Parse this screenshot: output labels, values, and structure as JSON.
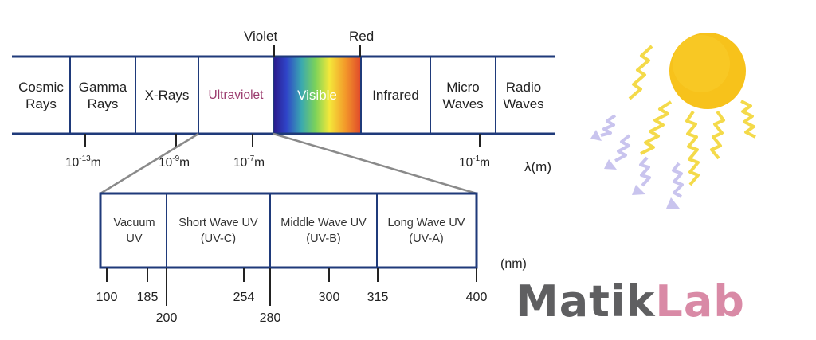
{
  "spectrum": {
    "top_labels": {
      "violet": "Violet",
      "red": "Red"
    },
    "bands": [
      {
        "label": "Cosmic\nRays",
        "color": "#222222"
      },
      {
        "label": "Gamma\nRays",
        "color": "#222222"
      },
      {
        "label": "X-Rays",
        "color": "#222222"
      },
      {
        "label": "Ultraviolet",
        "color": "#9b3b6e"
      },
      {
        "label": "Visible",
        "color": "#ffffff"
      },
      {
        "label": "Infrared",
        "color": "#222222"
      },
      {
        "label": "Micro\nWaves",
        "color": "#222222"
      },
      {
        "label": "Radio\nWaves",
        "color": "#222222"
      }
    ],
    "scale": [
      {
        "base": "10",
        "exp": "-13",
        "unit": "m"
      },
      {
        "base": "10",
        "exp": "-9",
        "unit": "m"
      },
      {
        "base": "10",
        "exp": "-7",
        "unit": "m"
      },
      {
        "base": "10",
        "exp": "-1",
        "unit": "m"
      }
    ],
    "unit_label": "λ(m)"
  },
  "uv_detail": {
    "bands": [
      {
        "label": "Vacuum\nUV"
      },
      {
        "label": "Short Wave UV\n(UV-C)"
      },
      {
        "label": "Middle Wave UV\n(UV-B)"
      },
      {
        "label": "Long Wave UV\n(UV-A)"
      }
    ],
    "unit_label": "(nm)",
    "ticks_upper": [
      "100",
      "185",
      "254",
      "300",
      "315",
      "400"
    ],
    "ticks_lower": [
      "200",
      "280"
    ]
  },
  "brand": {
    "part1": "Matik",
    "part2": "Lab",
    "color1": "#5f5f61",
    "color2": "#d98aa6"
  },
  "colors": {
    "frame": "#1f3a7a",
    "connector": "#8a8a8a",
    "sun": "#f7c21b",
    "rays": "#f4da4a",
    "cool_rays": "#c9c4ee"
  }
}
